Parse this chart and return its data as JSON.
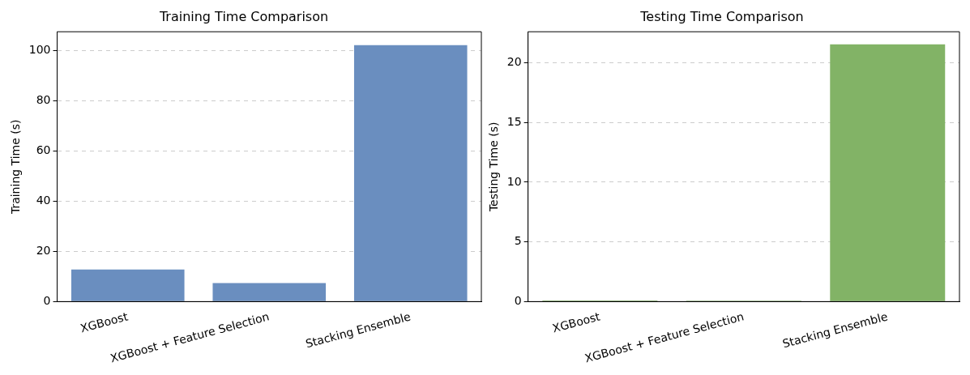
{
  "chart_data": [
    {
      "type": "bar",
      "title": "Training Time Comparison",
      "ylabel": "Training Time (s)",
      "categories": [
        "XGBoost",
        "XGBoost + Feature Selection",
        "Stacking Ensemble"
      ],
      "values": [
        12.8,
        7.4,
        102.2
      ],
      "color": "#6a8ebf",
      "ylim": [
        0,
        107.5
      ],
      "yticks": [
        0,
        20,
        40,
        60,
        80,
        100
      ],
      "grid": "y",
      "legend": false
    },
    {
      "type": "bar",
      "title": "Testing Time Comparison",
      "ylabel": "Testing Time (s)",
      "categories": [
        "XGBoost",
        "XGBoost + Feature Selection",
        "Stacking Ensemble"
      ],
      "values": [
        0.1,
        0.08,
        21.55
      ],
      "color": "#82b366",
      "ylim": [
        0,
        22.6
      ],
      "yticks": [
        0,
        5,
        10,
        15,
        20
      ],
      "grid": "y",
      "legend": false
    }
  ]
}
